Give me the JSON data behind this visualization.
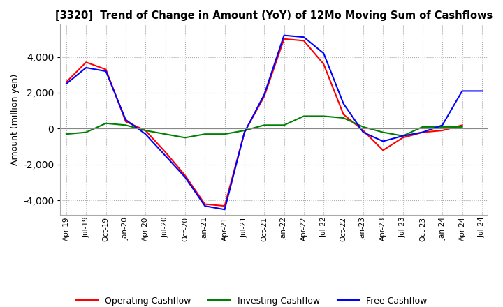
{
  "title": "[3320]  Trend of Change in Amount (YoY) of 12Mo Moving Sum of Cashflows",
  "ylabel": "Amount (million yen)",
  "x_labels": [
    "Apr-19",
    "Jul-19",
    "Oct-19",
    "Jan-20",
    "Apr-20",
    "Jul-20",
    "Oct-20",
    "Jan-21",
    "Apr-21",
    "Jul-21",
    "Oct-21",
    "Jan-22",
    "Apr-22",
    "Jul-22",
    "Oct-22",
    "Jan-23",
    "Apr-23",
    "Jul-23",
    "Oct-23",
    "Jan-24",
    "Apr-24",
    "Jul-24"
  ],
  "operating": [
    2600,
    3700,
    3300,
    400,
    -100,
    -1300,
    -2600,
    -4200,
    -4300,
    -200,
    1800,
    5000,
    4900,
    3600,
    800,
    -100,
    -1200,
    -500,
    -200,
    -100,
    200,
    null
  ],
  "investing": [
    -300,
    -200,
    300,
    200,
    -100,
    -300,
    -500,
    -300,
    -300,
    -100,
    200,
    200,
    700,
    700,
    600,
    100,
    -200,
    -400,
    100,
    100,
    100,
    null
  ],
  "free": [
    2500,
    3400,
    3200,
    500,
    -300,
    -1500,
    -2700,
    -4300,
    -4500,
    -200,
    1900,
    5200,
    5100,
    4200,
    1400,
    -200,
    -700,
    -400,
    -200,
    200,
    2100,
    2100
  ],
  "ylim": [
    -4800,
    5800
  ],
  "yticks": [
    -4000,
    -2000,
    0,
    2000,
    4000
  ],
  "colors": {
    "operating": "#ff0000",
    "investing": "#008000",
    "free": "#0000ff"
  },
  "legend": [
    "Operating Cashflow",
    "Investing Cashflow",
    "Free Cashflow"
  ],
  "grid_color": "#aaaaaa",
  "background": "#ffffff"
}
